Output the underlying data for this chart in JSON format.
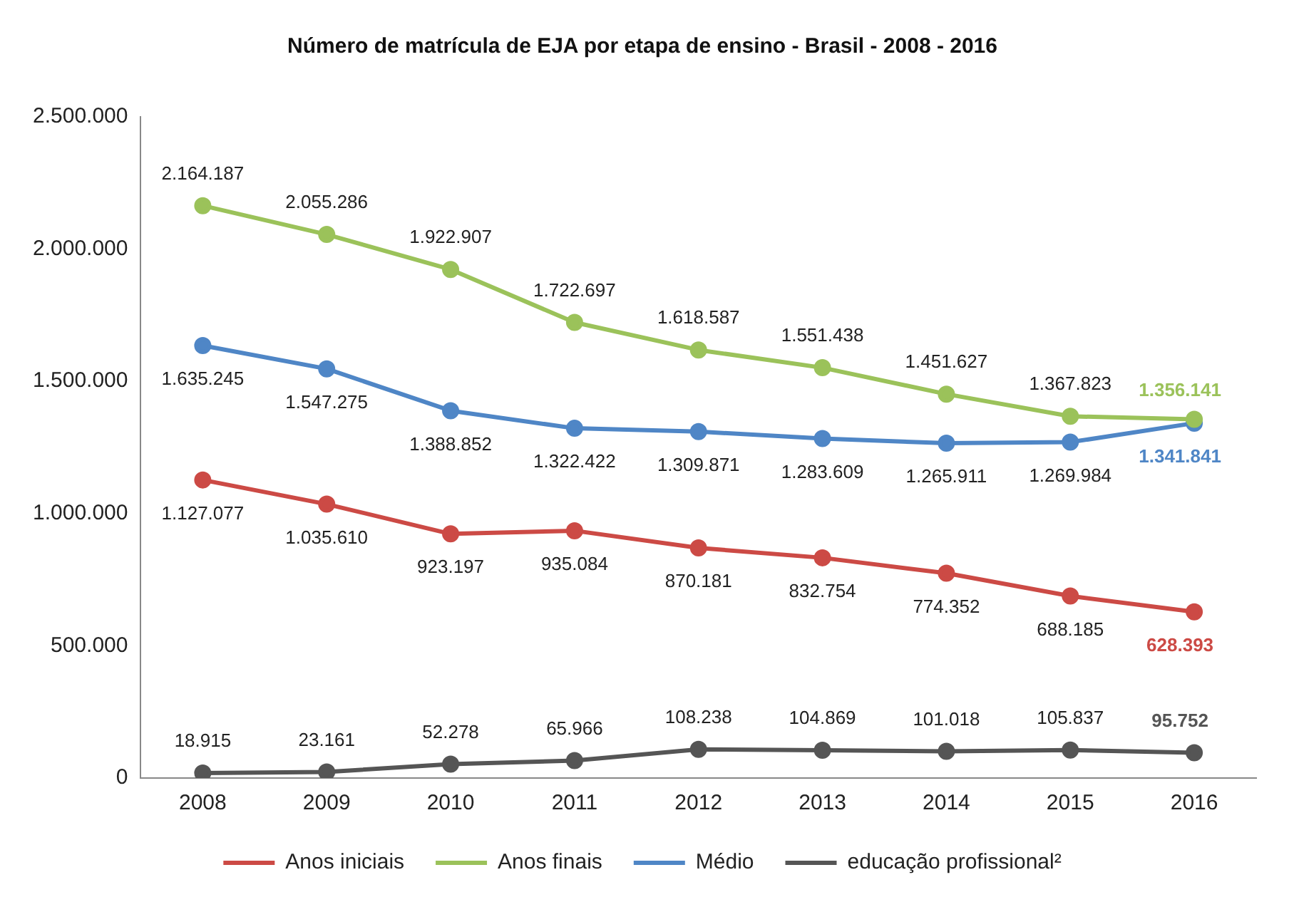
{
  "chart_data": {
    "type": "line",
    "title": "Número de matrícula de EJA por etapa de ensino - Brasil - 2008 - 2016",
    "categories": [
      "2008",
      "2009",
      "2010",
      "2011",
      "2012",
      "2013",
      "2014",
      "2015",
      "2016"
    ],
    "ylim": [
      0,
      2500000
    ],
    "yticks": [
      {
        "value": 0,
        "label": "0"
      },
      {
        "value": 500000,
        "label": "500.000"
      },
      {
        "value": 1000000,
        "label": "1.000.000"
      },
      {
        "value": 1500000,
        "label": "1.500.000"
      },
      {
        "value": 2000000,
        "label": "2.000.000"
      },
      {
        "value": 2500000,
        "label": "2.500.000"
      }
    ],
    "grid": false,
    "legend": "bottom",
    "marker": "circle",
    "line_style": "solid",
    "series": [
      {
        "name": "Anos iniciais",
        "color": "#cc4a45",
        "values": [
          1127077,
          1035610,
          923197,
          935084,
          870181,
          832754,
          774352,
          688185,
          628393
        ],
        "value_labels": [
          "1.127.077",
          "1.035.610",
          "923.197",
          "935.084",
          "870.181",
          "832.754",
          "774.352",
          "688.185",
          "628.393"
        ]
      },
      {
        "name": "Anos finais",
        "color": "#9bc25a",
        "values": [
          2164187,
          2055286,
          1922907,
          1722697,
          1618587,
          1551438,
          1451627,
          1367823,
          1356141
        ],
        "value_labels": [
          "2.164.187",
          "2.055.286",
          "1.922.907",
          "1.722.697",
          "1.618.587",
          "1.551.438",
          "1.451.627",
          "1.367.823",
          "1.356.141"
        ]
      },
      {
        "name": "Médio",
        "color": "#4f86c6",
        "values": [
          1635245,
          1547275,
          1388852,
          1322422,
          1309871,
          1283609,
          1265911,
          1269984,
          1341841
        ],
        "value_labels": [
          "1.635.245",
          "1.547.275",
          "1.388.852",
          "1.322.422",
          "1.309.871",
          "1.283.609",
          "1.265.911",
          "1.269.984",
          "1.341.841"
        ]
      },
      {
        "name": "educação profissional²",
        "color": "#555555",
        "values": [
          18915,
          23161,
          52278,
          65966,
          108238,
          104869,
          101018,
          105837,
          95752
        ],
        "value_labels": [
          "18.915",
          "23.161",
          "52.278",
          "65.966",
          "108.238",
          "104.869",
          "101.018",
          "105.837",
          "95.752"
        ]
      }
    ]
  }
}
